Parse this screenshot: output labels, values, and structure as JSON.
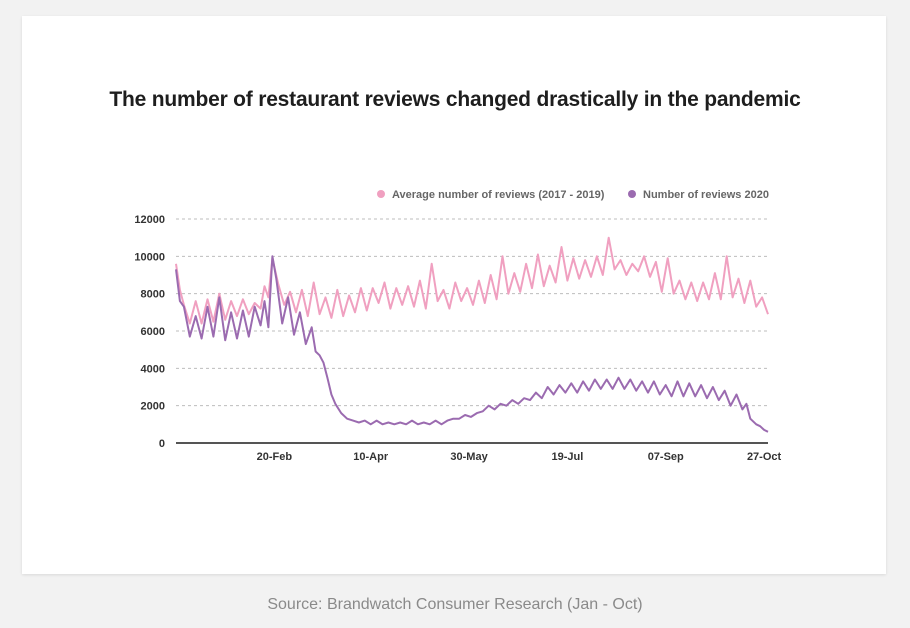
{
  "colors": {
    "page_bg": "#f2f2f2",
    "card_bg": "#ffffff",
    "series_avg": "#f0a0c0",
    "series_2020": "#9b6bb0",
    "grid": "#bdbdbd",
    "axis": "#555555"
  },
  "source": "Source: Brandwatch Consumer Research (Jan - Oct)",
  "chart_data": {
    "type": "line",
    "title": "The number of restaurant reviews changed drastically in the pandemic",
    "xlabel": "",
    "ylabel": "",
    "ylim": [
      0,
      12000
    ],
    "yticks": [
      "0",
      "2000",
      "4000",
      "6000",
      "8000",
      "10000",
      "12000"
    ],
    "xticks": [
      {
        "day": 51,
        "label": "20-Feb"
      },
      {
        "day": 100,
        "label": "10-Apr"
      },
      {
        "day": 150,
        "label": "30-May"
      },
      {
        "day": 200,
        "label": "19-Jul"
      },
      {
        "day": 250,
        "label": "07-Sep"
      },
      {
        "day": 300,
        "label": "27-Oct"
      }
    ],
    "x_range_day_of_year": [
      1,
      302
    ],
    "grid": true,
    "legend_position": "top-right",
    "series": [
      {
        "name": "Average number of reviews (2017 - 2019)",
        "color": "#f0a0c0",
        "points": [
          [
            1,
            9600
          ],
          [
            3,
            8200
          ],
          [
            5,
            7400
          ],
          [
            8,
            6400
          ],
          [
            11,
            7600
          ],
          [
            14,
            6400
          ],
          [
            17,
            7700
          ],
          [
            20,
            6500
          ],
          [
            23,
            8000
          ],
          [
            26,
            6600
          ],
          [
            29,
            7600
          ],
          [
            32,
            6800
          ],
          [
            35,
            7700
          ],
          [
            38,
            6900
          ],
          [
            41,
            7500
          ],
          [
            44,
            7200
          ],
          [
            46,
            8400
          ],
          [
            48,
            7800
          ],
          [
            50,
            9900
          ],
          [
            53,
            8500
          ],
          [
            56,
            7400
          ],
          [
            59,
            8100
          ],
          [
            62,
            7000
          ],
          [
            65,
            8200
          ],
          [
            68,
            6800
          ],
          [
            71,
            8600
          ],
          [
            74,
            6900
          ],
          [
            77,
            7800
          ],
          [
            80,
            6700
          ],
          [
            83,
            8200
          ],
          [
            86,
            6800
          ],
          [
            89,
            7900
          ],
          [
            92,
            7000
          ],
          [
            95,
            8300
          ],
          [
            98,
            7100
          ],
          [
            101,
            8300
          ],
          [
            104,
            7500
          ],
          [
            107,
            8600
          ],
          [
            110,
            7200
          ],
          [
            113,
            8300
          ],
          [
            116,
            7400
          ],
          [
            119,
            8400
          ],
          [
            122,
            7300
          ],
          [
            125,
            8700
          ],
          [
            128,
            7200
          ],
          [
            131,
            9600
          ],
          [
            134,
            7600
          ],
          [
            137,
            8200
          ],
          [
            140,
            7200
          ],
          [
            143,
            8600
          ],
          [
            146,
            7600
          ],
          [
            149,
            8300
          ],
          [
            152,
            7400
          ],
          [
            155,
            8700
          ],
          [
            158,
            7500
          ],
          [
            161,
            9000
          ],
          [
            164,
            7700
          ],
          [
            167,
            10000
          ],
          [
            170,
            8000
          ],
          [
            173,
            9100
          ],
          [
            176,
            8100
          ],
          [
            179,
            9600
          ],
          [
            182,
            8300
          ],
          [
            185,
            10100
          ],
          [
            188,
            8400
          ],
          [
            191,
            9500
          ],
          [
            194,
            8600
          ],
          [
            197,
            10500
          ],
          [
            200,
            8700
          ],
          [
            203,
            9900
          ],
          [
            206,
            8800
          ],
          [
            209,
            9800
          ],
          [
            212,
            8900
          ],
          [
            215,
            10000
          ],
          [
            218,
            9000
          ],
          [
            221,
            11000
          ],
          [
            224,
            9300
          ],
          [
            227,
            9800
          ],
          [
            230,
            9000
          ],
          [
            233,
            9600
          ],
          [
            236,
            9200
          ],
          [
            239,
            10000
          ],
          [
            242,
            8900
          ],
          [
            245,
            9700
          ],
          [
            248,
            8100
          ],
          [
            251,
            9900
          ],
          [
            254,
            8000
          ],
          [
            257,
            8700
          ],
          [
            260,
            7700
          ],
          [
            263,
            8600
          ],
          [
            266,
            7600
          ],
          [
            269,
            8600
          ],
          [
            272,
            7700
          ],
          [
            275,
            9100
          ],
          [
            278,
            7700
          ],
          [
            281,
            10000
          ],
          [
            284,
            7800
          ],
          [
            287,
            8800
          ],
          [
            290,
            7500
          ],
          [
            293,
            8700
          ],
          [
            296,
            7300
          ],
          [
            299,
            7800
          ],
          [
            302,
            6900
          ]
        ]
      },
      {
        "name": "Number of reviews 2020",
        "color": "#9b6bb0",
        "points": [
          [
            1,
            9300
          ],
          [
            3,
            7600
          ],
          [
            5,
            7300
          ],
          [
            8,
            5700
          ],
          [
            11,
            6800
          ],
          [
            14,
            5600
          ],
          [
            17,
            7300
          ],
          [
            20,
            5700
          ],
          [
            23,
            7800
          ],
          [
            26,
            5500
          ],
          [
            29,
            7000
          ],
          [
            32,
            5600
          ],
          [
            35,
            7100
          ],
          [
            38,
            5700
          ],
          [
            41,
            7300
          ],
          [
            44,
            6300
          ],
          [
            46,
            7600
          ],
          [
            48,
            6200
          ],
          [
            50,
            10000
          ],
          [
            52,
            8800
          ],
          [
            55,
            6400
          ],
          [
            58,
            7800
          ],
          [
            61,
            5800
          ],
          [
            64,
            7000
          ],
          [
            67,
            5300
          ],
          [
            70,
            6200
          ],
          [
            72,
            4900
          ],
          [
            74,
            4700
          ],
          [
            76,
            4300
          ],
          [
            78,
            3500
          ],
          [
            80,
            2600
          ],
          [
            82,
            2100
          ],
          [
            85,
            1600
          ],
          [
            88,
            1300
          ],
          [
            91,
            1200
          ],
          [
            94,
            1100
          ],
          [
            97,
            1200
          ],
          [
            100,
            1000
          ],
          [
            103,
            1200
          ],
          [
            106,
            1000
          ],
          [
            109,
            1100
          ],
          [
            112,
            1000
          ],
          [
            115,
            1100
          ],
          [
            118,
            1000
          ],
          [
            121,
            1200
          ],
          [
            124,
            1000
          ],
          [
            127,
            1100
          ],
          [
            130,
            1000
          ],
          [
            133,
            1200
          ],
          [
            136,
            1000
          ],
          [
            139,
            1200
          ],
          [
            142,
            1300
          ],
          [
            145,
            1300
          ],
          [
            148,
            1500
          ],
          [
            151,
            1400
          ],
          [
            154,
            1600
          ],
          [
            157,
            1700
          ],
          [
            160,
            2000
          ],
          [
            163,
            1800
          ],
          [
            166,
            2100
          ],
          [
            169,
            2000
          ],
          [
            172,
            2300
          ],
          [
            175,
            2100
          ],
          [
            178,
            2400
          ],
          [
            181,
            2300
          ],
          [
            184,
            2700
          ],
          [
            187,
            2400
          ],
          [
            190,
            3000
          ],
          [
            193,
            2600
          ],
          [
            196,
            3100
          ],
          [
            199,
            2700
          ],
          [
            202,
            3200
          ],
          [
            205,
            2700
          ],
          [
            208,
            3300
          ],
          [
            211,
            2800
          ],
          [
            214,
            3400
          ],
          [
            217,
            2900
          ],
          [
            220,
            3400
          ],
          [
            223,
            2900
          ],
          [
            226,
            3500
          ],
          [
            229,
            2900
          ],
          [
            232,
            3400
          ],
          [
            235,
            2800
          ],
          [
            238,
            3300
          ],
          [
            241,
            2700
          ],
          [
            244,
            3300
          ],
          [
            247,
            2600
          ],
          [
            250,
            3100
          ],
          [
            253,
            2500
          ],
          [
            256,
            3300
          ],
          [
            259,
            2500
          ],
          [
            262,
            3200
          ],
          [
            265,
            2500
          ],
          [
            268,
            3100
          ],
          [
            271,
            2400
          ],
          [
            274,
            3000
          ],
          [
            277,
            2300
          ],
          [
            280,
            2800
          ],
          [
            283,
            2000
          ],
          [
            286,
            2600
          ],
          [
            289,
            1800
          ],
          [
            291,
            2100
          ],
          [
            293,
            1300
          ],
          [
            296,
            1000
          ],
          [
            298,
            900
          ],
          [
            300,
            700
          ],
          [
            302,
            600
          ]
        ]
      }
    ]
  }
}
